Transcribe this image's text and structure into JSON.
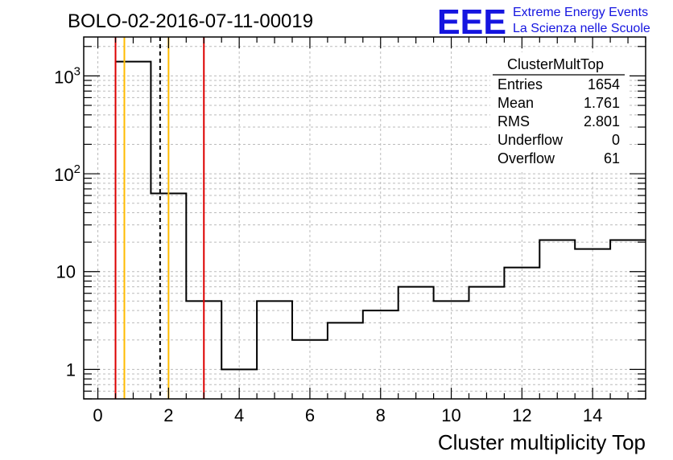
{
  "chart_data": {
    "type": "bar",
    "title": "BOLO-02-2016-07-11-00019",
    "xlabel": "Cluster multiplicity Top",
    "ylabel": "",
    "xlim": [
      -0.4,
      15.5
    ],
    "ylim": [
      0.5,
      2500
    ],
    "log_y": true,
    "grid": true,
    "x_ticks": [
      "0",
      "2",
      "4",
      "6",
      "8",
      "10",
      "12",
      "14"
    ],
    "y_ticks": [
      {
        "value": 1,
        "label": "1"
      },
      {
        "value": 10,
        "label": "10"
      },
      {
        "value": 100,
        "label": "10",
        "exp": "2"
      },
      {
        "value": 1000,
        "label": "10",
        "exp": "3"
      }
    ],
    "bins": [
      {
        "low": 0.5,
        "high": 1.5,
        "value": 1400
      },
      {
        "low": 1.5,
        "high": 2.5,
        "value": 63
      },
      {
        "low": 2.5,
        "high": 3.5,
        "value": 5
      },
      {
        "low": 3.5,
        "high": 4.5,
        "value": 1
      },
      {
        "low": 4.5,
        "high": 5.5,
        "value": 5
      },
      {
        "low": 5.5,
        "high": 6.5,
        "value": 2
      },
      {
        "low": 6.5,
        "high": 7.5,
        "value": 3
      },
      {
        "low": 7.5,
        "high": 8.5,
        "value": 4
      },
      {
        "low": 8.5,
        "high": 9.5,
        "value": 7
      },
      {
        "low": 9.5,
        "high": 10.5,
        "value": 5
      },
      {
        "low": 10.5,
        "high": 11.5,
        "value": 7
      },
      {
        "low": 11.5,
        "high": 12.5,
        "value": 11
      },
      {
        "low": 12.5,
        "high": 13.5,
        "value": 21
      },
      {
        "low": 13.5,
        "high": 14.5,
        "value": 17
      },
      {
        "low": 14.5,
        "high": 15.5,
        "value": 21
      }
    ],
    "vertical_lines": [
      {
        "x": 0.5,
        "color": "#dd0000",
        "style": "solid"
      },
      {
        "x": 0.75,
        "color": "#ffbb00",
        "style": "solid"
      },
      {
        "x": 1.761,
        "color": "#000000",
        "style": "dashed"
      },
      {
        "x": 2.0,
        "color": "#ffbb00",
        "style": "solid"
      },
      {
        "x": 3.0,
        "color": "#dd0000",
        "style": "solid"
      }
    ],
    "stats": {
      "name": "ClusterMultTop",
      "rows": [
        {
          "label": "Entries",
          "value": "1654"
        },
        {
          "label": "Mean",
          "value": "1.761"
        },
        {
          "label": "RMS",
          "value": "2.801"
        },
        {
          "label": "Underflow",
          "value": "0"
        },
        {
          "label": "Overflow",
          "value": "61"
        }
      ]
    }
  },
  "logo": {
    "mark": "EEE",
    "line1": "Extreme Energy Events",
    "line2": "La Scienza nelle Scuole",
    "color": "#1515e0"
  }
}
